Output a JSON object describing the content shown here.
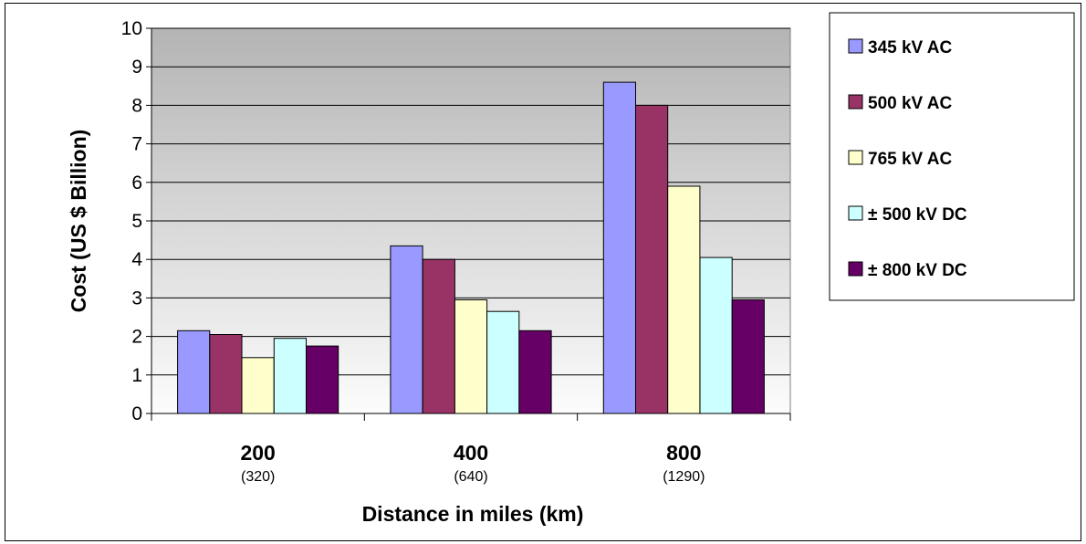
{
  "chart_data": {
    "type": "bar",
    "categories": [
      "200",
      "400",
      "800"
    ],
    "category_sublabels": [
      "(320)",
      "(640)",
      "(1290)"
    ],
    "series": [
      {
        "name": "345 kV AC",
        "values": [
          2.15,
          4.35,
          8.6
        ],
        "color": "#9999FF"
      },
      {
        "name": "500 kV AC",
        "values": [
          2.05,
          4.0,
          8.0
        ],
        "color": "#993366"
      },
      {
        "name": "765 kV AC",
        "values": [
          1.45,
          2.95,
          5.9
        ],
        "color": "#FFFFCC"
      },
      {
        "name": "± 500 kV DC",
        "values": [
          1.95,
          2.65,
          4.05
        ],
        "color": "#CCFFFF"
      },
      {
        "name": "± 800 kV DC",
        "values": [
          1.75,
          2.15,
          2.95
        ],
        "color": "#660066"
      }
    ],
    "xlabel": "Distance in miles (km)",
    "ylabel": "Cost (US $ Billion)",
    "ylim": [
      0,
      10
    ],
    "yticks": [
      "0",
      "1",
      "2",
      "3",
      "4",
      "5",
      "6",
      "7",
      "8",
      "9",
      "10"
    ],
    "grid": true,
    "legend": "right"
  }
}
